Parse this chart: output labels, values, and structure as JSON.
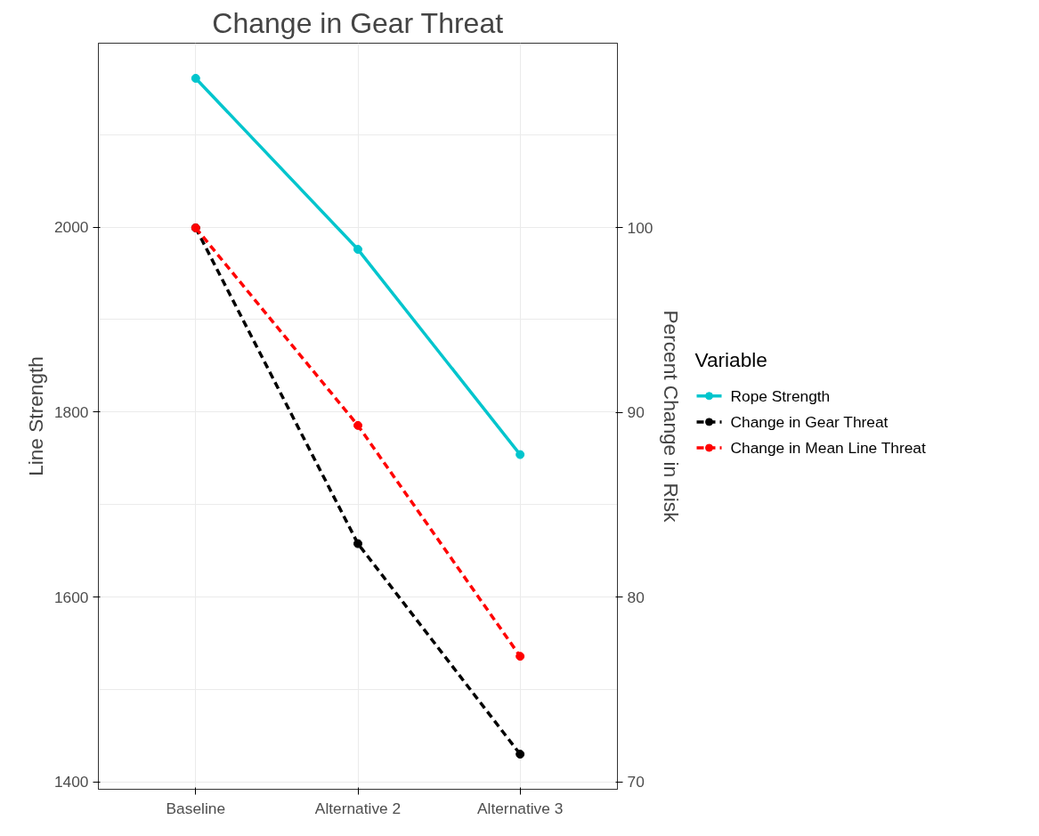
{
  "chart_data": {
    "type": "line",
    "title": "Change in Gear Threat",
    "ylabel": "Line Strength",
    "y2label": "Percent Change in Risk",
    "legend_title": "Variable",
    "categories": [
      "Baseline",
      "Alternative 2",
      "Alternative 3"
    ],
    "series": [
      {
        "name": "Rope Strength",
        "color": "#00c5cd",
        "values": [
          2161,
          1976,
          1754
        ],
        "line_style": "solid"
      },
      {
        "name": "Change in Gear Threat",
        "color": "#000000",
        "values": [
          100,
          82.9,
          71.5
        ],
        "axis": "y2",
        "line_style": "dashed"
      },
      {
        "name": "Change in Mean Line Threat",
        "color": "#ff0000",
        "values": [
          100,
          89.3,
          76.8
        ],
        "axis": "y2",
        "line_style": "dashed"
      }
    ],
    "ylim": [
      1392,
      2199
    ],
    "yticks": [
      1400,
      1600,
      1800,
      2000
    ],
    "y2lim": [
      69.6,
      110
    ],
    "y2ticks": [
      70,
      80,
      90,
      100
    ],
    "grid": true,
    "legend": "right",
    "marker": "circle"
  }
}
